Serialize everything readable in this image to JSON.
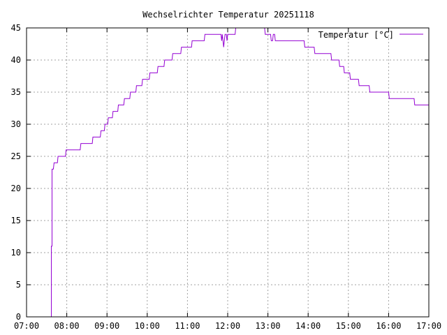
{
  "chart_data": {
    "type": "line",
    "title": "Wechselrichter Temperatur 20251118",
    "xlabel": "",
    "ylabel": "",
    "x_axis_type": "time",
    "xlim": [
      "07:00",
      "17:00"
    ],
    "ylim": [
      0,
      45
    ],
    "x_ticks": [
      "07:00",
      "08:00",
      "09:00",
      "10:00",
      "11:00",
      "12:00",
      "13:00",
      "14:00",
      "15:00",
      "16:00",
      "17:00"
    ],
    "y_ticks": [
      "0",
      "5",
      "10",
      "15",
      "20",
      "25",
      "30",
      "35",
      "40",
      "45"
    ],
    "grid": true,
    "grid_style": "dotted",
    "legend_position": "top-right",
    "series": [
      {
        "name": "Temperatur [°C]",
        "color": "#9400d3",
        "points": [
          [
            "07:37",
            0
          ],
          [
            "07:37",
            11
          ],
          [
            "07:38",
            11
          ],
          [
            "07:38",
            23
          ],
          [
            "07:39",
            23
          ],
          [
            "07:40",
            23
          ],
          [
            "07:41",
            24
          ],
          [
            "07:46",
            24
          ],
          [
            "07:47",
            25
          ],
          [
            "07:58",
            25
          ],
          [
            "07:59",
            26
          ],
          [
            "08:20",
            26
          ],
          [
            "08:21",
            27
          ],
          [
            "08:38",
            27
          ],
          [
            "08:39",
            28
          ],
          [
            "08:50",
            28
          ],
          [
            "08:51",
            29
          ],
          [
            "08:56",
            29
          ],
          [
            "08:57",
            30
          ],
          [
            "09:01",
            30
          ],
          [
            "09:02",
            31
          ],
          [
            "09:08",
            31
          ],
          [
            "09:09",
            32
          ],
          [
            "09:16",
            32
          ],
          [
            "09:17",
            33
          ],
          [
            "09:25",
            33
          ],
          [
            "09:26",
            34
          ],
          [
            "09:34",
            34
          ],
          [
            "09:35",
            35
          ],
          [
            "09:43",
            35
          ],
          [
            "09:44",
            36
          ],
          [
            "09:52",
            36
          ],
          [
            "09:53",
            37
          ],
          [
            "10:03",
            37
          ],
          [
            "10:04",
            38
          ],
          [
            "10:15",
            38
          ],
          [
            "10:16",
            39
          ],
          [
            "10:25",
            39
          ],
          [
            "10:26",
            40
          ],
          [
            "10:37",
            40
          ],
          [
            "10:38",
            41
          ],
          [
            "10:50",
            41
          ],
          [
            "10:51",
            42
          ],
          [
            "11:06",
            42
          ],
          [
            "11:07",
            43
          ],
          [
            "11:25",
            43
          ],
          [
            "11:26",
            44
          ],
          [
            "11:50",
            44
          ],
          [
            "11:51",
            43
          ],
          [
            "11:52",
            44
          ],
          [
            "11:53",
            43
          ],
          [
            "11:54",
            42
          ],
          [
            "11:55",
            43
          ],
          [
            "11:56",
            44
          ],
          [
            "11:58",
            44
          ],
          [
            "11:59",
            43
          ],
          [
            "12:00",
            44
          ],
          [
            "12:11",
            44
          ],
          [
            "12:12",
            45
          ],
          [
            "12:55",
            45
          ],
          [
            "12:56",
            44
          ],
          [
            "13:04",
            44
          ],
          [
            "13:05",
            43
          ],
          [
            "13:07",
            43
          ],
          [
            "13:08",
            44
          ],
          [
            "13:10",
            44
          ],
          [
            "13:11",
            43
          ],
          [
            "13:54",
            43
          ],
          [
            "13:55",
            42
          ],
          [
            "14:09",
            42
          ],
          [
            "14:10",
            41
          ],
          [
            "14:34",
            41
          ],
          [
            "14:35",
            40
          ],
          [
            "14:46",
            40
          ],
          [
            "14:47",
            39
          ],
          [
            "14:53",
            39
          ],
          [
            "14:54",
            38
          ],
          [
            "15:02",
            38
          ],
          [
            "15:03",
            37
          ],
          [
            "15:15",
            37
          ],
          [
            "15:16",
            36
          ],
          [
            "15:31",
            36
          ],
          [
            "15:32",
            35
          ],
          [
            "16:00",
            35
          ],
          [
            "16:01",
            34
          ],
          [
            "16:38",
            34
          ],
          [
            "16:39",
            33
          ],
          [
            "17:00",
            33
          ]
        ]
      }
    ]
  }
}
